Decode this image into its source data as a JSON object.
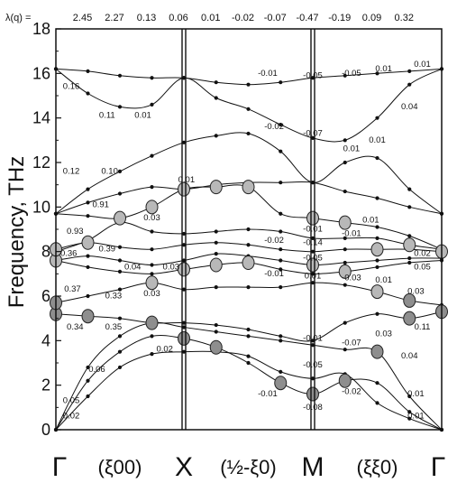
{
  "chart_data": {
    "type": "line",
    "title": "",
    "ylabel": "Frequency, THz",
    "ylim": [
      0,
      18
    ],
    "yticks": [
      "0",
      "2",
      "4",
      "6",
      "8",
      "10",
      "12",
      "14",
      "16",
      "18"
    ],
    "lambda_label": "λ(q) =",
    "lambda_values": [
      "2.45",
      "2.27",
      "0.13",
      "0.06",
      "0.01",
      "-0.02",
      "-0.07",
      "-0.47",
      "-0.19",
      "0.09",
      "0.32"
    ],
    "x_symbols": [
      "Γ",
      "X",
      "M",
      "Γ"
    ],
    "x_directions": [
      "(ξ00)",
      "(½-ξ0)",
      "(ξξ0)"
    ],
    "branches": [
      {
        "points": [
          [
            0,
            0
          ],
          [
            0.25,
            1.5
          ],
          [
            0.5,
            2.8
          ],
          [
            0.75,
            3.4
          ],
          [
            1,
            3.5
          ],
          [
            1.25,
            3.5
          ],
          [
            1.5,
            3.3
          ],
          [
            1.75,
            2.6
          ],
          [
            2,
            2.3
          ],
          [
            2.25,
            2.5
          ],
          [
            2.5,
            1.2
          ],
          [
            2.75,
            0.5
          ],
          [
            3,
            0
          ]
        ]
      },
      {
        "points": [
          [
            0,
            0
          ],
          [
            0.25,
            2.2
          ],
          [
            0.5,
            3.5
          ],
          [
            0.75,
            4.2
          ],
          [
            1,
            4.1
          ],
          [
            1.25,
            3.7
          ],
          [
            1.5,
            3.0
          ],
          [
            1.75,
            2.1
          ],
          [
            2,
            1.6
          ],
          [
            2.25,
            2.2
          ],
          [
            2.5,
            2.1
          ],
          [
            2.75,
            0.8
          ],
          [
            3,
            0
          ]
        ]
      },
      {
        "points": [
          [
            0,
            0
          ],
          [
            0.25,
            2.8
          ],
          [
            0.5,
            4.2
          ],
          [
            0.75,
            4.8
          ],
          [
            1,
            4.6
          ],
          [
            1.25,
            4.4
          ],
          [
            1.5,
            4.2
          ],
          [
            1.75,
            4.0
          ],
          [
            2,
            3.8
          ],
          [
            2.25,
            3.6
          ],
          [
            2.5,
            3.5
          ],
          [
            2.75,
            1.5
          ],
          [
            3,
            0
          ]
        ]
      },
      {
        "points": [
          [
            0,
            5.2
          ],
          [
            0.25,
            5.1
          ],
          [
            0.5,
            5.0
          ],
          [
            0.75,
            4.8
          ],
          [
            1,
            4.8
          ],
          [
            1.25,
            4.7
          ],
          [
            1.5,
            4.5
          ],
          [
            1.75,
            4.2
          ],
          [
            2,
            4.0
          ],
          [
            2.25,
            4.8
          ],
          [
            2.5,
            5.2
          ],
          [
            2.75,
            5.0
          ],
          [
            3,
            5.3
          ]
        ]
      },
      {
        "points": [
          [
            0,
            5.7
          ],
          [
            0.25,
            6.0
          ],
          [
            0.5,
            6.3
          ],
          [
            0.75,
            6.6
          ],
          [
            1,
            6.3
          ],
          [
            1.25,
            6.4
          ],
          [
            1.5,
            6.4
          ],
          [
            1.75,
            6.4
          ],
          [
            2,
            6.6
          ],
          [
            2.25,
            6.5
          ],
          [
            2.5,
            6.2
          ],
          [
            2.75,
            5.8
          ],
          [
            3,
            5.6
          ]
        ]
      },
      {
        "points": [
          [
            0,
            7.6
          ],
          [
            0.25,
            7.3
          ],
          [
            0.5,
            7.1
          ],
          [
            0.75,
            7.0
          ],
          [
            1,
            7.2
          ],
          [
            1.25,
            7.4
          ],
          [
            1.5,
            7.5
          ],
          [
            1.75,
            7.2
          ],
          [
            2,
            7.0
          ],
          [
            2.25,
            7.1
          ],
          [
            2.5,
            7.3
          ],
          [
            2.75,
            7.5
          ],
          [
            3,
            7.6
          ]
        ]
      },
      {
        "points": [
          [
            0,
            7.6
          ],
          [
            0.25,
            7.8
          ],
          [
            0.5,
            7.6
          ],
          [
            0.75,
            7.4
          ],
          [
            1,
            7.6
          ],
          [
            1.25,
            7.9
          ],
          [
            1.5,
            7.8
          ],
          [
            1.75,
            7.6
          ],
          [
            2,
            7.4
          ],
          [
            2.25,
            7.5
          ],
          [
            2.5,
            7.6
          ],
          [
            2.75,
            7.7
          ],
          [
            3,
            7.7
          ]
        ]
      },
      {
        "points": [
          [
            0,
            8.1
          ],
          [
            0.25,
            8.4
          ],
          [
            0.5,
            8.2
          ],
          [
            0.75,
            8.1
          ],
          [
            1,
            8.3
          ],
          [
            1.25,
            8.4
          ],
          [
            1.5,
            8.3
          ],
          [
            1.75,
            8.1
          ],
          [
            2,
            8.0
          ],
          [
            2.25,
            8.1
          ],
          [
            2.5,
            8.1
          ],
          [
            2.75,
            8.1
          ],
          [
            3,
            8.0
          ]
        ]
      },
      {
        "points": [
          [
            0,
            8.0
          ],
          [
            0.25,
            8.5
          ],
          [
            0.5,
            9.3
          ],
          [
            0.75,
            8.9
          ],
          [
            1,
            8.8
          ],
          [
            1.25,
            8.9
          ],
          [
            1.5,
            9.0
          ],
          [
            1.75,
            8.9
          ],
          [
            2,
            8.6
          ],
          [
            2.25,
            8.6
          ],
          [
            2.5,
            8.6
          ],
          [
            2.75,
            8.3
          ],
          [
            3,
            8.1
          ]
        ]
      },
      {
        "points": [
          [
            0,
            9.7
          ],
          [
            0.25,
            9.6
          ],
          [
            0.5,
            9.5
          ],
          [
            0.75,
            10.0
          ],
          [
            1,
            10.8
          ],
          [
            1.25,
            10.9
          ],
          [
            1.5,
            10.9
          ],
          [
            1.75,
            9.7
          ],
          [
            2,
            9.5
          ],
          [
            2.25,
            9.3
          ],
          [
            2.5,
            9.1
          ],
          [
            2.75,
            8.7
          ],
          [
            3,
            8.1
          ]
        ]
      },
      {
        "points": [
          [
            0,
            9.7
          ],
          [
            0.25,
            10.2
          ],
          [
            0.5,
            10.6
          ],
          [
            0.75,
            10.9
          ],
          [
            1,
            10.8
          ],
          [
            1.25,
            11.0
          ],
          [
            1.5,
            11.1
          ],
          [
            1.75,
            11.1
          ],
          [
            2,
            11.1
          ],
          [
            2.25,
            10.7
          ],
          [
            2.5,
            10.4
          ],
          [
            2.75,
            10.0
          ],
          [
            3,
            9.7
          ]
        ]
      },
      {
        "points": [
          [
            0,
            9.7
          ],
          [
            0.25,
            10.8
          ],
          [
            0.5,
            11.6
          ],
          [
            0.75,
            12.3
          ],
          [
            1,
            12.9
          ],
          [
            1.25,
            13.2
          ],
          [
            1.5,
            13.3
          ],
          [
            1.75,
            12.5
          ],
          [
            2,
            11.1
          ],
          [
            2.25,
            12.0
          ],
          [
            2.5,
            12.2
          ],
          [
            2.75,
            10.8
          ],
          [
            3,
            9.7
          ]
        ]
      },
      {
        "points": [
          [
            0,
            16.2
          ],
          [
            0.25,
            15.1
          ],
          [
            0.5,
            14.5
          ],
          [
            0.75,
            14.6
          ],
          [
            1,
            15.8
          ],
          [
            1.25,
            14.9
          ],
          [
            1.5,
            14.4
          ],
          [
            1.75,
            13.7
          ],
          [
            2,
            13.1
          ],
          [
            2.25,
            13.0
          ],
          [
            2.5,
            14.0
          ],
          [
            2.75,
            15.5
          ],
          [
            3,
            16.2
          ]
        ]
      },
      {
        "points": [
          [
            0,
            16.2
          ],
          [
            0.25,
            16.1
          ],
          [
            0.5,
            15.9
          ],
          [
            0.75,
            15.8
          ],
          [
            1,
            15.8
          ],
          [
            1.25,
            15.6
          ],
          [
            1.5,
            15.5
          ],
          [
            1.75,
            15.6
          ],
          [
            2,
            15.8
          ],
          [
            2.25,
            15.9
          ],
          [
            2.5,
            16.0
          ],
          [
            2.75,
            16.1
          ],
          [
            3,
            16.2
          ]
        ]
      }
    ],
    "markers": [
      [
        0,
        5.2
      ],
      [
        0.25,
        5.1
      ],
      [
        0.75,
        4.8
      ],
      [
        1,
        4.1
      ],
      [
        1.25,
        3.7
      ],
      [
        1.75,
        2.1
      ],
      [
        2,
        1.6
      ],
      [
        2.25,
        2.2
      ],
      [
        2.5,
        3.5
      ],
      [
        2.75,
        5.0
      ],
      [
        3,
        5.3
      ],
      [
        0,
        5.7
      ],
      [
        0.75,
        6.6
      ],
      [
        2.5,
        6.2
      ],
      [
        2.75,
        5.8
      ],
      [
        0,
        7.6
      ],
      [
        1,
        7.2
      ],
      [
        1.25,
        7.4
      ],
      [
        1.5,
        7.5
      ],
      [
        2,
        7.4
      ],
      [
        2.25,
        7.1
      ],
      [
        0,
        8.1
      ],
      [
        0.25,
        8.4
      ],
      [
        2.5,
        8.1
      ],
      [
        2.75,
        8.3
      ],
      [
        3,
        8.0
      ],
      [
        0.5,
        9.5
      ],
      [
        0.75,
        10.0
      ],
      [
        1,
        10.8
      ],
      [
        1.25,
        10.9
      ],
      [
        1.5,
        10.9
      ],
      [
        2,
        9.5
      ],
      [
        2.25,
        9.3
      ]
    ],
    "annotations": [
      {
        "text": "0.16",
        "x": 0.12,
        "y": 15.3
      },
      {
        "text": "0.11",
        "x": 0.4,
        "y": 14.0
      },
      {
        "text": "0.01",
        "x": 0.68,
        "y": 14.0
      },
      {
        "text": "0.12",
        "x": 0.12,
        "y": 11.5
      },
      {
        "text": "0.10",
        "x": 0.42,
        "y": 11.5
      },
      {
        "text": "0.01",
        "x": 1.02,
        "y": 11.1
      },
      {
        "text": "-0.01",
        "x": 1.65,
        "y": 15.9
      },
      {
        "text": "-0.05",
        "x": 2.0,
        "y": 15.8
      },
      {
        "text": "-0.05",
        "x": 2.3,
        "y": 15.9
      },
      {
        "text": "0.01",
        "x": 2.55,
        "y": 16.1
      },
      {
        "text": "0.01",
        "x": 2.85,
        "y": 16.3
      },
      {
        "text": "-0.02",
        "x": 1.7,
        "y": 13.5
      },
      {
        "text": "0.04",
        "x": 2.75,
        "y": 14.4
      },
      {
        "text": "-0.07",
        "x": 2.0,
        "y": 13.2
      },
      {
        "text": "0.01",
        "x": 2.3,
        "y": 12.5
      },
      {
        "text": "0.01",
        "x": 2.5,
        "y": 12.9
      },
      {
        "text": "0.91",
        "x": 0.35,
        "y": 10.0
      },
      {
        "text": "0.03",
        "x": 0.75,
        "y": 9.4
      },
      {
        "text": "0.93",
        "x": 0.15,
        "y": 8.8
      },
      {
        "text": "0.39",
        "x": 0.4,
        "y": 8.0
      },
      {
        "text": "0.36",
        "x": 0.1,
        "y": 7.8
      },
      {
        "text": "0.04",
        "x": 0.6,
        "y": 7.2
      },
      {
        "text": "0.03",
        "x": 0.9,
        "y": 7.2
      },
      {
        "text": "0.37",
        "x": 0.13,
        "y": 6.2
      },
      {
        "text": "0.33",
        "x": 0.45,
        "y": 5.9
      },
      {
        "text": "0.03",
        "x": 0.75,
        "y": 6.0
      },
      {
        "text": "0.34",
        "x": 0.15,
        "y": 4.5
      },
      {
        "text": "0.35",
        "x": 0.45,
        "y": 4.5
      },
      {
        "text": "-0.02",
        "x": 1.7,
        "y": 8.4
      },
      {
        "text": "-0.01",
        "x": 2.0,
        "y": 8.9
      },
      {
        "text": "-0.14",
        "x": 2.0,
        "y": 8.3
      },
      {
        "text": "-0.05",
        "x": 2.0,
        "y": 7.6
      },
      {
        "text": "-0.01",
        "x": 2.3,
        "y": 8.7
      },
      {
        "text": "0.01",
        "x": 2.45,
        "y": 9.3
      },
      {
        "text": "0.02",
        "x": 2.85,
        "y": 7.8
      },
      {
        "text": "0.05",
        "x": 2.85,
        "y": 7.2
      },
      {
        "text": "-0.01",
        "x": 1.7,
        "y": 6.9
      },
      {
        "text": "0.01",
        "x": 2.0,
        "y": 6.8
      },
      {
        "text": "-0.03",
        "x": 2.3,
        "y": 6.7
      },
      {
        "text": "0.01",
        "x": 2.55,
        "y": 6.6
      },
      {
        "text": "0.03",
        "x": 2.8,
        "y": 6.1
      },
      {
        "text": "0.11",
        "x": 2.85,
        "y": 4.5
      },
      {
        "text": "0.02",
        "x": 0.85,
        "y": 3.5
      },
      {
        "text": "0.06",
        "x": 0.32,
        "y": 2.6
      },
      {
        "text": "0.05",
        "x": 0.12,
        "y": 1.2
      },
      {
        "text": "0.02",
        "x": 0.12,
        "y": 0.5
      },
      {
        "text": "-0.01",
        "x": 2.0,
        "y": 4.0
      },
      {
        "text": "-0.07",
        "x": 2.3,
        "y": 3.8
      },
      {
        "text": "0.03",
        "x": 2.55,
        "y": 4.2
      },
      {
        "text": "-0.05",
        "x": 2.0,
        "y": 2.8
      },
      {
        "text": "0.04",
        "x": 2.75,
        "y": 3.2
      },
      {
        "text": "-0.01",
        "x": 1.65,
        "y": 1.5
      },
      {
        "text": "-0.02",
        "x": 2.3,
        "y": 1.6
      },
      {
        "text": "0.01",
        "x": 2.8,
        "y": 1.5
      },
      {
        "text": "-0.08",
        "x": 2.0,
        "y": 0.9
      },
      {
        "text": "0.01",
        "x": 2.8,
        "y": 0.5
      }
    ],
    "grid": false,
    "legend": "none"
  }
}
